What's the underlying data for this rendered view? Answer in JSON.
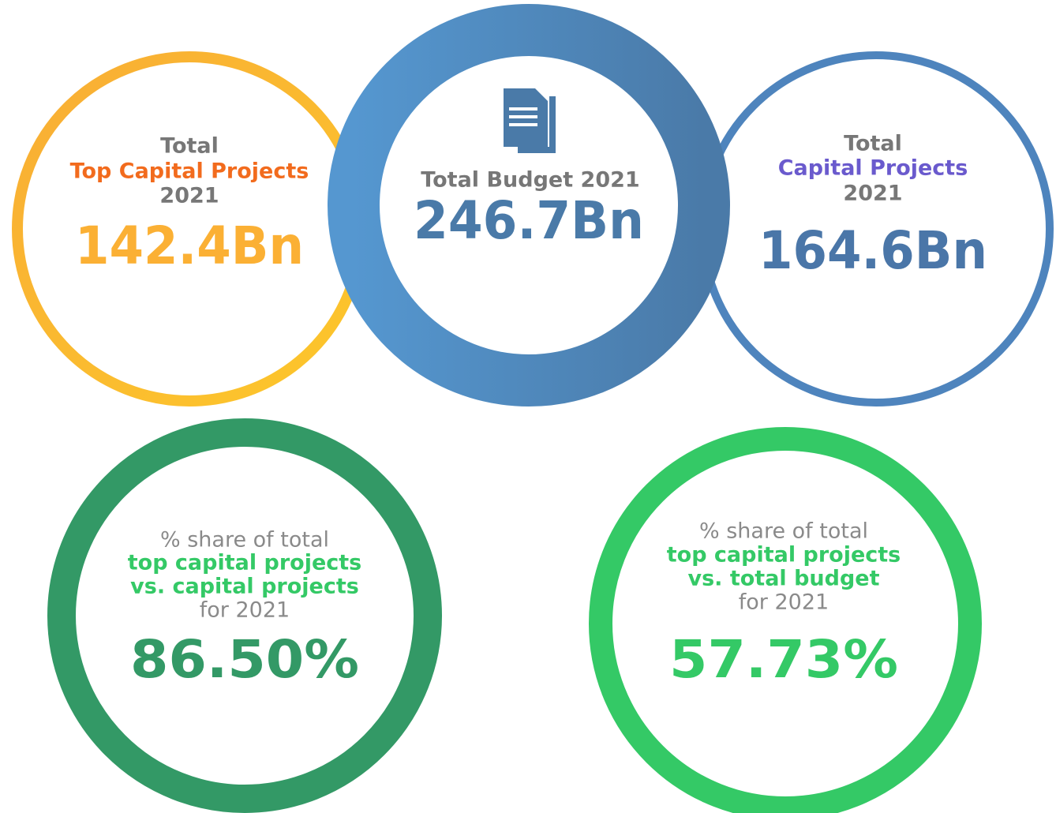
{
  "circles": [
    {
      "lines": [
        "Total",
        "Top Capital Projects",
        "2021"
      ],
      "value": "142.4Bn"
    },
    {
      "lines": [
        "Total Budget 2021"
      ],
      "value": "246.7Bn"
    },
    {
      "lines": [
        "Total",
        "Capital Projects",
        "2021"
      ],
      "value": "164.6Bn"
    },
    {
      "lines": [
        "% share of total",
        "top capital projects",
        "vs. capital projects",
        "for 2021"
      ],
      "value": "86.50%"
    },
    {
      "lines": [
        "% share of total",
        "top capital projects",
        "vs. total budget",
        "for 2021"
      ],
      "value": "57.73%"
    }
  ]
}
